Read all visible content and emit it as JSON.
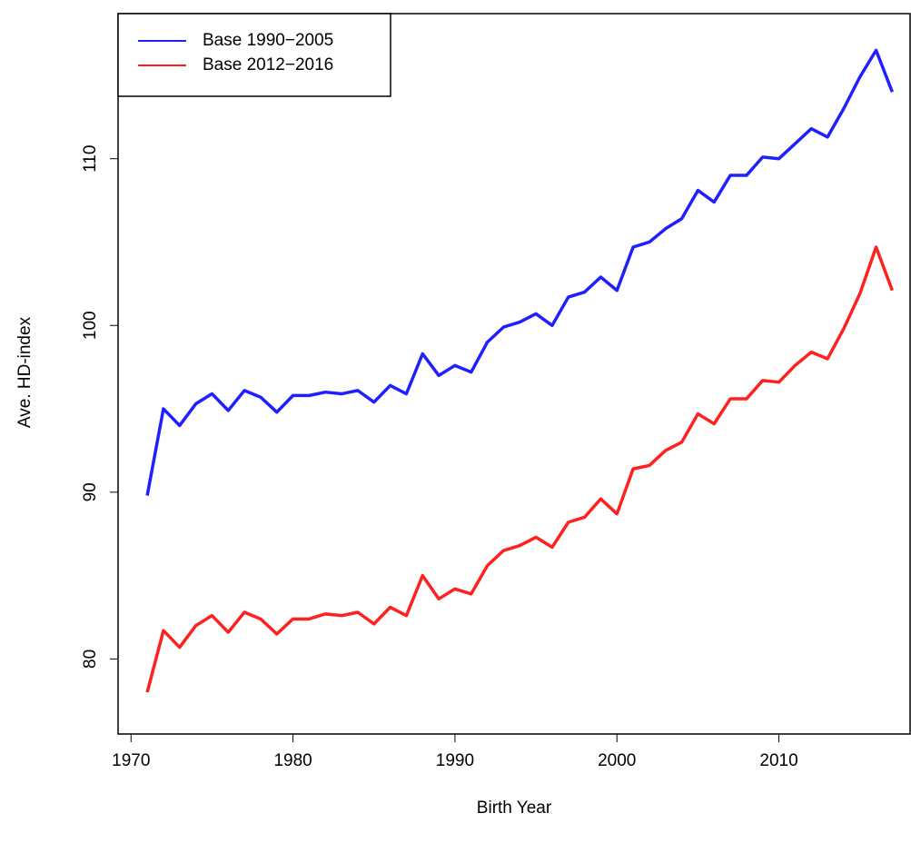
{
  "chart_data": {
    "type": "line",
    "xlabel": "Birth Year",
    "ylabel": "Ave. HD-index",
    "x": [
      1971,
      1972,
      1973,
      1974,
      1975,
      1976,
      1977,
      1978,
      1979,
      1980,
      1981,
      1982,
      1983,
      1984,
      1985,
      1986,
      1987,
      1988,
      1989,
      1990,
      1991,
      1992,
      1993,
      1994,
      1995,
      1996,
      1997,
      1998,
      1999,
      2000,
      2001,
      2002,
      2003,
      2004,
      2005,
      2006,
      2007,
      2008,
      2009,
      2010,
      2011,
      2012,
      2013,
      2014,
      2015,
      2016,
      2017
    ],
    "series": [
      {
        "name": "Base 1990−2005",
        "color": "#2020ff",
        "values": [
          89.8,
          95.0,
          94.0,
          95.3,
          95.9,
          94.9,
          96.1,
          95.7,
          94.8,
          95.8,
          95.8,
          96.0,
          95.9,
          96.1,
          95.4,
          96.4,
          95.9,
          98.3,
          97.0,
          97.6,
          97.2,
          99.0,
          99.9,
          100.2,
          100.7,
          100.0,
          101.7,
          102.0,
          102.9,
          102.1,
          104.7,
          105.0,
          105.8,
          106.4,
          108.1,
          107.4,
          109.0,
          109.0,
          110.1,
          110.0,
          110.9,
          111.8,
          111.3,
          113.0,
          114.9,
          116.5,
          114.0
        ]
      },
      {
        "name": "Base 2012−2016",
        "color": "#ff2020",
        "values": [
          78.0,
          81.7,
          80.7,
          82.0,
          82.6,
          81.6,
          82.8,
          82.4,
          81.5,
          82.4,
          82.4,
          82.7,
          82.6,
          82.8,
          82.1,
          83.1,
          82.6,
          85.0,
          83.6,
          84.2,
          83.9,
          85.6,
          86.5,
          86.8,
          87.3,
          86.7,
          88.2,
          88.5,
          89.6,
          88.7,
          91.4,
          91.6,
          92.5,
          93.0,
          94.7,
          94.1,
          95.6,
          95.6,
          96.7,
          96.6,
          97.6,
          98.4,
          98.0,
          99.8,
          101.9,
          104.7,
          102.1
        ]
      }
    ],
    "xlim": [
      1969.2,
      2018.1
    ],
    "xticks": [
      1970,
      1980,
      1990,
      2000,
      2010
    ],
    "ylim": [
      75.5,
      118.7
    ],
    "yticks": [
      80,
      90,
      100,
      110
    ],
    "legend": "top-left"
  }
}
